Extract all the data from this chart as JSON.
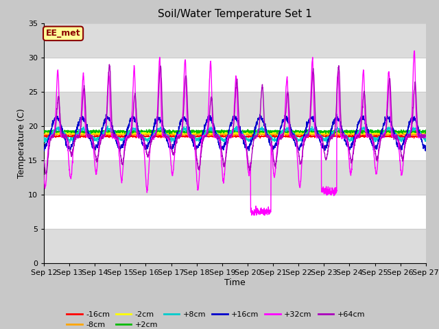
{
  "title": "Soil/Water Temperature Set 1",
  "xlabel": "Time",
  "ylabel": "Temperature (C)",
  "ylim": [
    0,
    35
  ],
  "yticks": [
    0,
    5,
    10,
    15,
    20,
    25,
    30,
    35
  ],
  "x_tick_labels": [
    "Sep 12",
    "Sep 13",
    "Sep 14",
    "Sep 15",
    "Sep 16",
    "Sep 17",
    "Sep 18",
    "Sep 19",
    "Sep 20",
    "Sep 21",
    "Sep 22",
    "Sep 23",
    "Sep 24",
    "Sep 25",
    "Sep 26",
    "Sep 27"
  ],
  "annotation_text": "EE_met",
  "annotation_color": "#8B0000",
  "annotation_bg": "#FFFF99",
  "fig_bg": "#C8C8C8",
  "plot_bg": "#FFFFFF",
  "gray_band_color": "#DCDCDC",
  "grid_color": "#CCCCCC",
  "series": {
    "-16cm": {
      "color": "#FF0000"
    },
    "-8cm": {
      "color": "#FFA500"
    },
    "-2cm": {
      "color": "#FFFF00"
    },
    "+2cm": {
      "color": "#00BB00"
    },
    "+8cm": {
      "color": "#00CCCC"
    },
    "+16cm": {
      "color": "#0000CC"
    },
    "+32cm": {
      "color": "#FF00FF"
    },
    "+64cm": {
      "color": "#AA00BB"
    }
  }
}
